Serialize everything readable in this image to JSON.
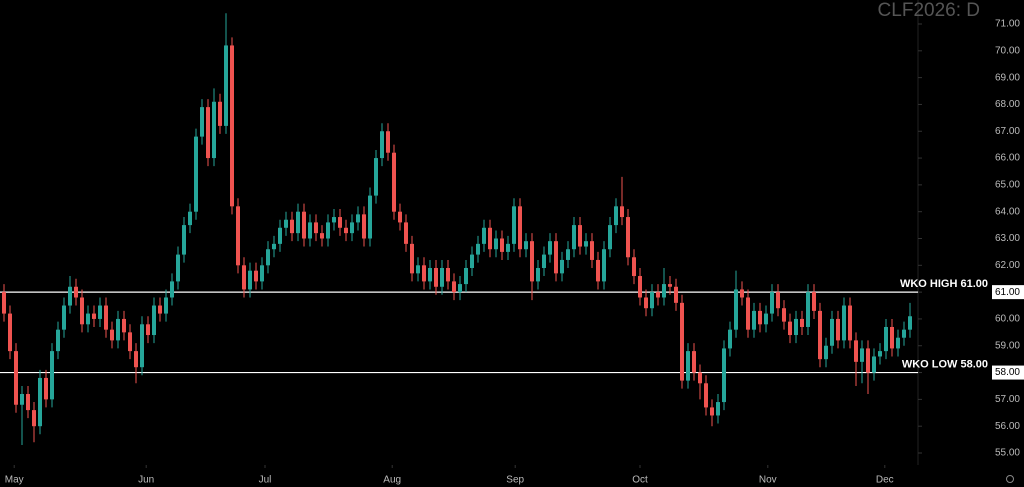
{
  "chart_data": {
    "type": "candlestick",
    "title": "CLF2026: D",
    "up_color": "#26a69a",
    "down_color": "#ef5350",
    "ylim": [
      55,
      71
    ],
    "yticks": [
      {
        "value": 55,
        "label": "55.00"
      },
      {
        "value": 56,
        "label": "56.00"
      },
      {
        "value": 57,
        "label": "57.00"
      },
      {
        "value": 58,
        "label": "58.00"
      },
      {
        "value": 59,
        "label": "59.00"
      },
      {
        "value": 60,
        "label": "60.00"
      },
      {
        "value": 61,
        "label": "61.00"
      },
      {
        "value": 62,
        "label": "62.00"
      },
      {
        "value": 63,
        "label": "63.00"
      },
      {
        "value": 64,
        "label": "64.00"
      },
      {
        "value": 65,
        "label": "65.00"
      },
      {
        "value": 66,
        "label": "66.00"
      },
      {
        "value": 67,
        "label": "67.00"
      },
      {
        "value": 68,
        "label": "68.00"
      },
      {
        "value": 69,
        "label": "69.00"
      },
      {
        "value": 70,
        "label": "70.00"
      },
      {
        "value": 71,
        "label": "71.00"
      }
    ],
    "xticks": [
      {
        "value": 1.7,
        "label": "May"
      },
      {
        "value": 23.7,
        "label": "Jun"
      },
      {
        "value": 43.5,
        "label": "Jul"
      },
      {
        "value": 64.7,
        "label": "Aug"
      },
      {
        "value": 85.2,
        "label": "Sep"
      },
      {
        "value": 106,
        "label": "Oct"
      },
      {
        "value": 127.3,
        "label": "Nov"
      },
      {
        "value": 146.8,
        "label": "Dec"
      }
    ],
    "hlines": [
      {
        "value": 61,
        "label": "WKO HIGH 61.00",
        "color": "#ffffff"
      },
      {
        "value": 58,
        "label": "WKO LOW 58.00",
        "color": "#ffffff"
      }
    ],
    "open": [
      61.0,
      60.2,
      58.8,
      56.8,
      57.2,
      56.6,
      56.0,
      57.8,
      57.0,
      58.8,
      59.6,
      60.5,
      61.2,
      60.8,
      59.8,
      60.2,
      60.0,
      60.5,
      59.6,
      59.2,
      60.0,
      59.5,
      58.8,
      58.2,
      59.8,
      59.4,
      60.5,
      60.2,
      60.8,
      61.4,
      62.4,
      63.5,
      64.0,
      66.8,
      67.9,
      66.0,
      68.1,
      67.2,
      70.2,
      64.2,
      62.0,
      61.1,
      61.8,
      61.4,
      62.0,
      62.6,
      62.8,
      63.4,
      63.7,
      63.2,
      64.0,
      63.0,
      63.6,
      63.2,
      63.0,
      63.6,
      63.8,
      63.4,
      63.2,
      63.6,
      63.9,
      63.0,
      64.6,
      66.0,
      67.0,
      66.2,
      64.0,
      63.6,
      62.8,
      61.7,
      62.0,
      61.4,
      61.9,
      61.2,
      61.9,
      61.4,
      61.0,
      61.3,
      61.9,
      62.4,
      62.8,
      63.4,
      62.6,
      63.0,
      62.5,
      62.8,
      64.2,
      62.6,
      62.9,
      61.4,
      61.9,
      62.4,
      62.9,
      61.7,
      62.2,
      62.6,
      63.5,
      62.7,
      62.9,
      62.2,
      61.4,
      62.6,
      63.5,
      64.2,
      63.8,
      62.3,
      61.6,
      60.8,
      60.4,
      61.0,
      60.8,
      61.3,
      61.2,
      60.6,
      57.7,
      58.8,
      58.0,
      57.6,
      56.7,
      56.4,
      56.9,
      58.9,
      59.6,
      61.1,
      60.8,
      59.6,
      60.3,
      59.8,
      60.2,
      61.0,
      60.4,
      59.9,
      59.4,
      60.0,
      59.7,
      61.0,
      60.3,
      58.5,
      59.0,
      60.0,
      59.2,
      60.5,
      59.2,
      58.4,
      58.9,
      58.0,
      58.6,
      58.8,
      59.7,
      58.9,
      59.3,
      59.6
    ],
    "high": [
      61.3,
      60.5,
      59.1,
      57.5,
      57.5,
      56.9,
      58.1,
      58.1,
      59.1,
      59.9,
      60.8,
      61.6,
      61.5,
      61.1,
      60.5,
      60.5,
      60.8,
      60.8,
      59.9,
      60.3,
      60.3,
      59.8,
      59.1,
      60.1,
      60.1,
      60.8,
      60.8,
      61.1,
      61.7,
      62.7,
      63.8,
      64.3,
      67.1,
      68.2,
      68.2,
      68.6,
      68.4,
      71.4,
      70.5,
      64.5,
      62.3,
      62.1,
      62.1,
      62.3,
      62.9,
      63.1,
      63.7,
      64.0,
      64.0,
      64.3,
      64.3,
      63.9,
      63.9,
      63.5,
      63.9,
      64.1,
      64.1,
      63.7,
      63.9,
      64.2,
      64.2,
      64.9,
      66.3,
      67.3,
      67.3,
      66.5,
      64.3,
      63.9,
      63.1,
      62.3,
      62.3,
      62.2,
      62.2,
      62.2,
      62.2,
      61.7,
      61.6,
      62.2,
      62.7,
      63.1,
      63.7,
      63.7,
      63.3,
      63.3,
      63.1,
      64.5,
      64.5,
      63.2,
      63.2,
      62.2,
      62.7,
      63.2,
      63.2,
      62.5,
      62.9,
      63.8,
      63.8,
      63.2,
      63.2,
      62.5,
      62.9,
      63.8,
      64.5,
      65.3,
      64.1,
      62.6,
      61.9,
      61.1,
      61.3,
      61.3,
      61.9,
      61.6,
      61.5,
      60.9,
      59.1,
      59.1,
      58.3,
      57.9,
      57.0,
      57.2,
      59.2,
      59.9,
      61.8,
      61.4,
      61.1,
      60.6,
      60.6,
      60.5,
      61.3,
      61.3,
      60.7,
      60.2,
      60.3,
      60.3,
      61.3,
      61.3,
      60.6,
      59.3,
      60.3,
      60.3,
      60.8,
      60.8,
      59.5,
      59.2,
      59.2,
      58.9,
      59.1,
      60.0,
      60.0,
      59.6,
      59.9,
      60.6
    ],
    "low": [
      59.9,
      58.5,
      56.5,
      55.3,
      56.3,
      55.4,
      55.7,
      56.7,
      56.7,
      58.5,
      59.3,
      60.2,
      60.5,
      59.5,
      59.5,
      59.7,
      59.7,
      59.3,
      58.9,
      58.9,
      59.2,
      58.5,
      57.6,
      57.9,
      59.1,
      59.1,
      59.9,
      59.9,
      60.5,
      61.1,
      62.1,
      63.2,
      63.7,
      66.5,
      65.7,
      65.7,
      66.9,
      66.9,
      63.9,
      61.7,
      60.8,
      60.8,
      61.1,
      61.1,
      61.7,
      62.3,
      62.5,
      63.1,
      62.9,
      62.9,
      62.7,
      62.7,
      62.9,
      62.7,
      62.7,
      63.3,
      63.1,
      62.9,
      62.9,
      63.3,
      62.7,
      62.7,
      64.3,
      65.7,
      65.9,
      63.7,
      63.3,
      62.5,
      61.4,
      61.4,
      61.1,
      61.1,
      60.9,
      60.9,
      61.1,
      60.7,
      60.7,
      61.0,
      61.6,
      62.1,
      62.5,
      62.3,
      62.3,
      62.2,
      62.2,
      62.5,
      62.3,
      62.3,
      60.7,
      61.1,
      61.6,
      62.1,
      61.4,
      61.4,
      61.9,
      62.3,
      62.4,
      62.4,
      61.9,
      61.1,
      61.1,
      62.3,
      63.2,
      63.5,
      62.0,
      61.3,
      60.5,
      60.1,
      60.1,
      60.5,
      60.5,
      60.9,
      60.3,
      57.4,
      57.4,
      57.7,
      57.0,
      56.4,
      56.0,
      56.1,
      56.6,
      58.6,
      59.3,
      60.5,
      59.3,
      59.3,
      59.5,
      59.5,
      59.9,
      60.1,
      59.6,
      59.1,
      59.1,
      59.4,
      59.4,
      60.0,
      58.2,
      58.2,
      58.7,
      58.9,
      58.9,
      58.9,
      57.5,
      57.6,
      57.2,
      57.7,
      58.3,
      58.5,
      58.6,
      58.6,
      59.0,
      59.3
    ],
    "close": [
      60.2,
      58.8,
      56.8,
      57.2,
      56.6,
      56.0,
      57.8,
      57.0,
      58.8,
      59.6,
      60.5,
      61.2,
      60.8,
      59.8,
      60.2,
      60.0,
      60.5,
      59.6,
      59.2,
      60.0,
      59.5,
      58.8,
      58.2,
      59.8,
      59.4,
      60.5,
      60.2,
      60.8,
      61.4,
      62.4,
      63.5,
      64.0,
      66.8,
      67.9,
      66.0,
      68.1,
      67.2,
      70.2,
      64.2,
      62.0,
      61.1,
      61.8,
      61.4,
      62.0,
      62.6,
      62.8,
      63.4,
      63.7,
      63.2,
      64.0,
      63.0,
      63.6,
      63.2,
      63.0,
      63.6,
      63.8,
      63.4,
      63.2,
      63.6,
      63.9,
      63.0,
      64.6,
      66.0,
      67.0,
      66.2,
      64.0,
      63.6,
      62.8,
      61.7,
      62.0,
      61.4,
      61.9,
      61.2,
      61.9,
      61.4,
      61.0,
      61.3,
      61.9,
      62.4,
      62.8,
      63.4,
      62.6,
      63.0,
      62.5,
      62.8,
      64.2,
      62.6,
      62.9,
      61.4,
      61.9,
      62.4,
      62.9,
      61.7,
      62.2,
      62.6,
      63.5,
      62.7,
      62.9,
      62.2,
      61.4,
      62.6,
      63.5,
      64.2,
      63.8,
      62.3,
      61.6,
      60.8,
      60.4,
      61.0,
      60.8,
      61.3,
      61.2,
      60.6,
      57.7,
      58.8,
      58.0,
      57.6,
      56.7,
      56.4,
      56.9,
      58.9,
      59.6,
      61.1,
      60.8,
      59.6,
      60.3,
      59.8,
      60.2,
      61.0,
      60.4,
      59.9,
      59.4,
      60.0,
      59.7,
      61.0,
      60.3,
      58.5,
      59.0,
      60.0,
      59.2,
      60.5,
      59.2,
      58.4,
      58.9,
      58.0,
      58.6,
      58.8,
      59.7,
      58.9,
      59.3,
      59.6,
      60.1
    ]
  }
}
